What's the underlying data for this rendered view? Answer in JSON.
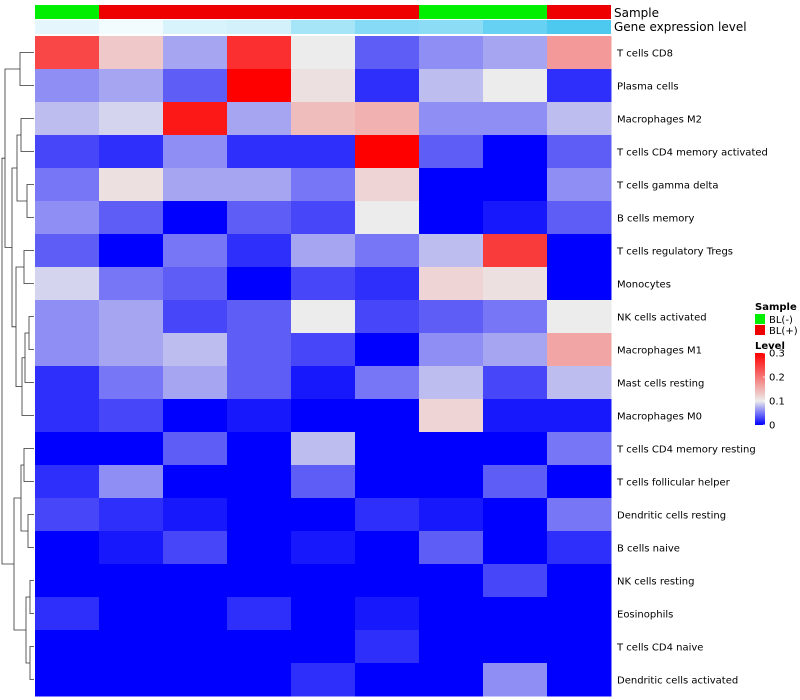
{
  "chart_data": {
    "type": "heatmap",
    "title": "",
    "annotation_track_labels": {
      "sample": "Sample",
      "expression": "Gene expression level"
    },
    "sample_groups": [
      "BL(-)",
      "BL(+)",
      "BL(+)",
      "BL(+)",
      "BL(+)",
      "BL(+)",
      "BL(-)",
      "BL(-)",
      "BL(+)"
    ],
    "gene_expression_level": [
      0.1,
      0.08,
      0.12,
      0.13,
      0.2,
      0.25,
      0.24,
      0.3,
      0.34
    ],
    "rows": [
      "T cells CD8",
      "Plasma cells",
      "Macrophages M2",
      "T cells CD4 memory activated",
      "T cells gamma delta",
      "B cells memory",
      "T cells regulatory  Tregs",
      "Monocytes",
      "NK cells activated",
      "Macrophages M1",
      "Mast cells resting",
      "Macrophages M0",
      "T cells CD4 memory resting",
      "T cells follicular helper",
      "Dendritic cells resting",
      "B cells naive",
      "NK cells resting",
      "Eosinophils",
      "T cells CD4 naive",
      "Dendritic cells activated"
    ],
    "values": [
      [
        0.24,
        0.13,
        0.07,
        0.26,
        0.1,
        0.04,
        0.06,
        0.07,
        0.17
      ],
      [
        0.06,
        0.07,
        0.04,
        0.3,
        0.11,
        0.02,
        0.08,
        0.1,
        0.02
      ],
      [
        0.08,
        0.09,
        0.28,
        0.07,
        0.14,
        0.15,
        0.06,
        0.06,
        0.08
      ],
      [
        0.03,
        0.02,
        0.06,
        0.02,
        0.02,
        0.3,
        0.04,
        0.0,
        0.04
      ],
      [
        0.05,
        0.11,
        0.07,
        0.07,
        0.05,
        0.12,
        0.0,
        0.0,
        0.06
      ],
      [
        0.06,
        0.04,
        0.0,
        0.04,
        0.03,
        0.1,
        0.0,
        0.01,
        0.04
      ],
      [
        0.04,
        0.0,
        0.05,
        0.02,
        0.07,
        0.05,
        0.08,
        0.25,
        0.0
      ],
      [
        0.09,
        0.05,
        0.04,
        0.0,
        0.03,
        0.02,
        0.12,
        0.11,
        0.0
      ],
      [
        0.06,
        0.07,
        0.03,
        0.04,
        0.1,
        0.03,
        0.04,
        0.05,
        0.1
      ],
      [
        0.06,
        0.07,
        0.08,
        0.04,
        0.03,
        0.0,
        0.06,
        0.07,
        0.16
      ],
      [
        0.02,
        0.05,
        0.07,
        0.04,
        0.01,
        0.05,
        0.08,
        0.03,
        0.08
      ],
      [
        0.02,
        0.03,
        0.0,
        0.01,
        0.0,
        0.0,
        0.12,
        0.01,
        0.01
      ],
      [
        0.0,
        0.0,
        0.04,
        0.0,
        0.08,
        0.0,
        0.0,
        0.0,
        0.05
      ],
      [
        0.02,
        0.06,
        0.0,
        0.0,
        0.04,
        0.0,
        0.0,
        0.04,
        0.0
      ],
      [
        0.03,
        0.02,
        0.01,
        0.0,
        0.0,
        0.02,
        0.01,
        0.0,
        0.05
      ],
      [
        0.0,
        0.01,
        0.03,
        0.0,
        0.01,
        0.0,
        0.04,
        0.0,
        0.02
      ],
      [
        0.0,
        0.0,
        0.0,
        0.0,
        0.0,
        0.0,
        0.0,
        0.03,
        0.0
      ],
      [
        0.02,
        0.0,
        0.0,
        0.02,
        0.0,
        0.01,
        0.0,
        0.0,
        0.0
      ],
      [
        0.0,
        0.0,
        0.0,
        0.0,
        0.0,
        0.02,
        0.0,
        0.0,
        0.0
      ],
      [
        0.0,
        0.0,
        0.0,
        0.0,
        0.02,
        0.0,
        0.0,
        0.06,
        0.0
      ]
    ],
    "color_scale": {
      "min": 0,
      "mid": 0.1,
      "max": 0.3,
      "low": "#0000ff",
      "midcolor": "#ececec",
      "high": "#ff0000"
    },
    "legend_sample": {
      "title": "Sample",
      "entries": [
        {
          "label": "BL(-)",
          "color": "#00ee00"
        },
        {
          "label": "BL(+)",
          "color": "#ee0000"
        }
      ]
    },
    "legend_level": {
      "title": "Level",
      "ticks": [
        {
          "value": 0.3,
          "label": "0.3"
        },
        {
          "value": 0.2,
          "label": "0.2"
        },
        {
          "value": 0.1,
          "label": "0.1"
        },
        {
          "value": 0,
          "label": "0"
        }
      ]
    },
    "expression_track_colors": {
      "low": "#f2fbfe",
      "high": "#4dc9f0",
      "min": 0.08,
      "max": 0.34
    },
    "row_dendrogram": true
  }
}
